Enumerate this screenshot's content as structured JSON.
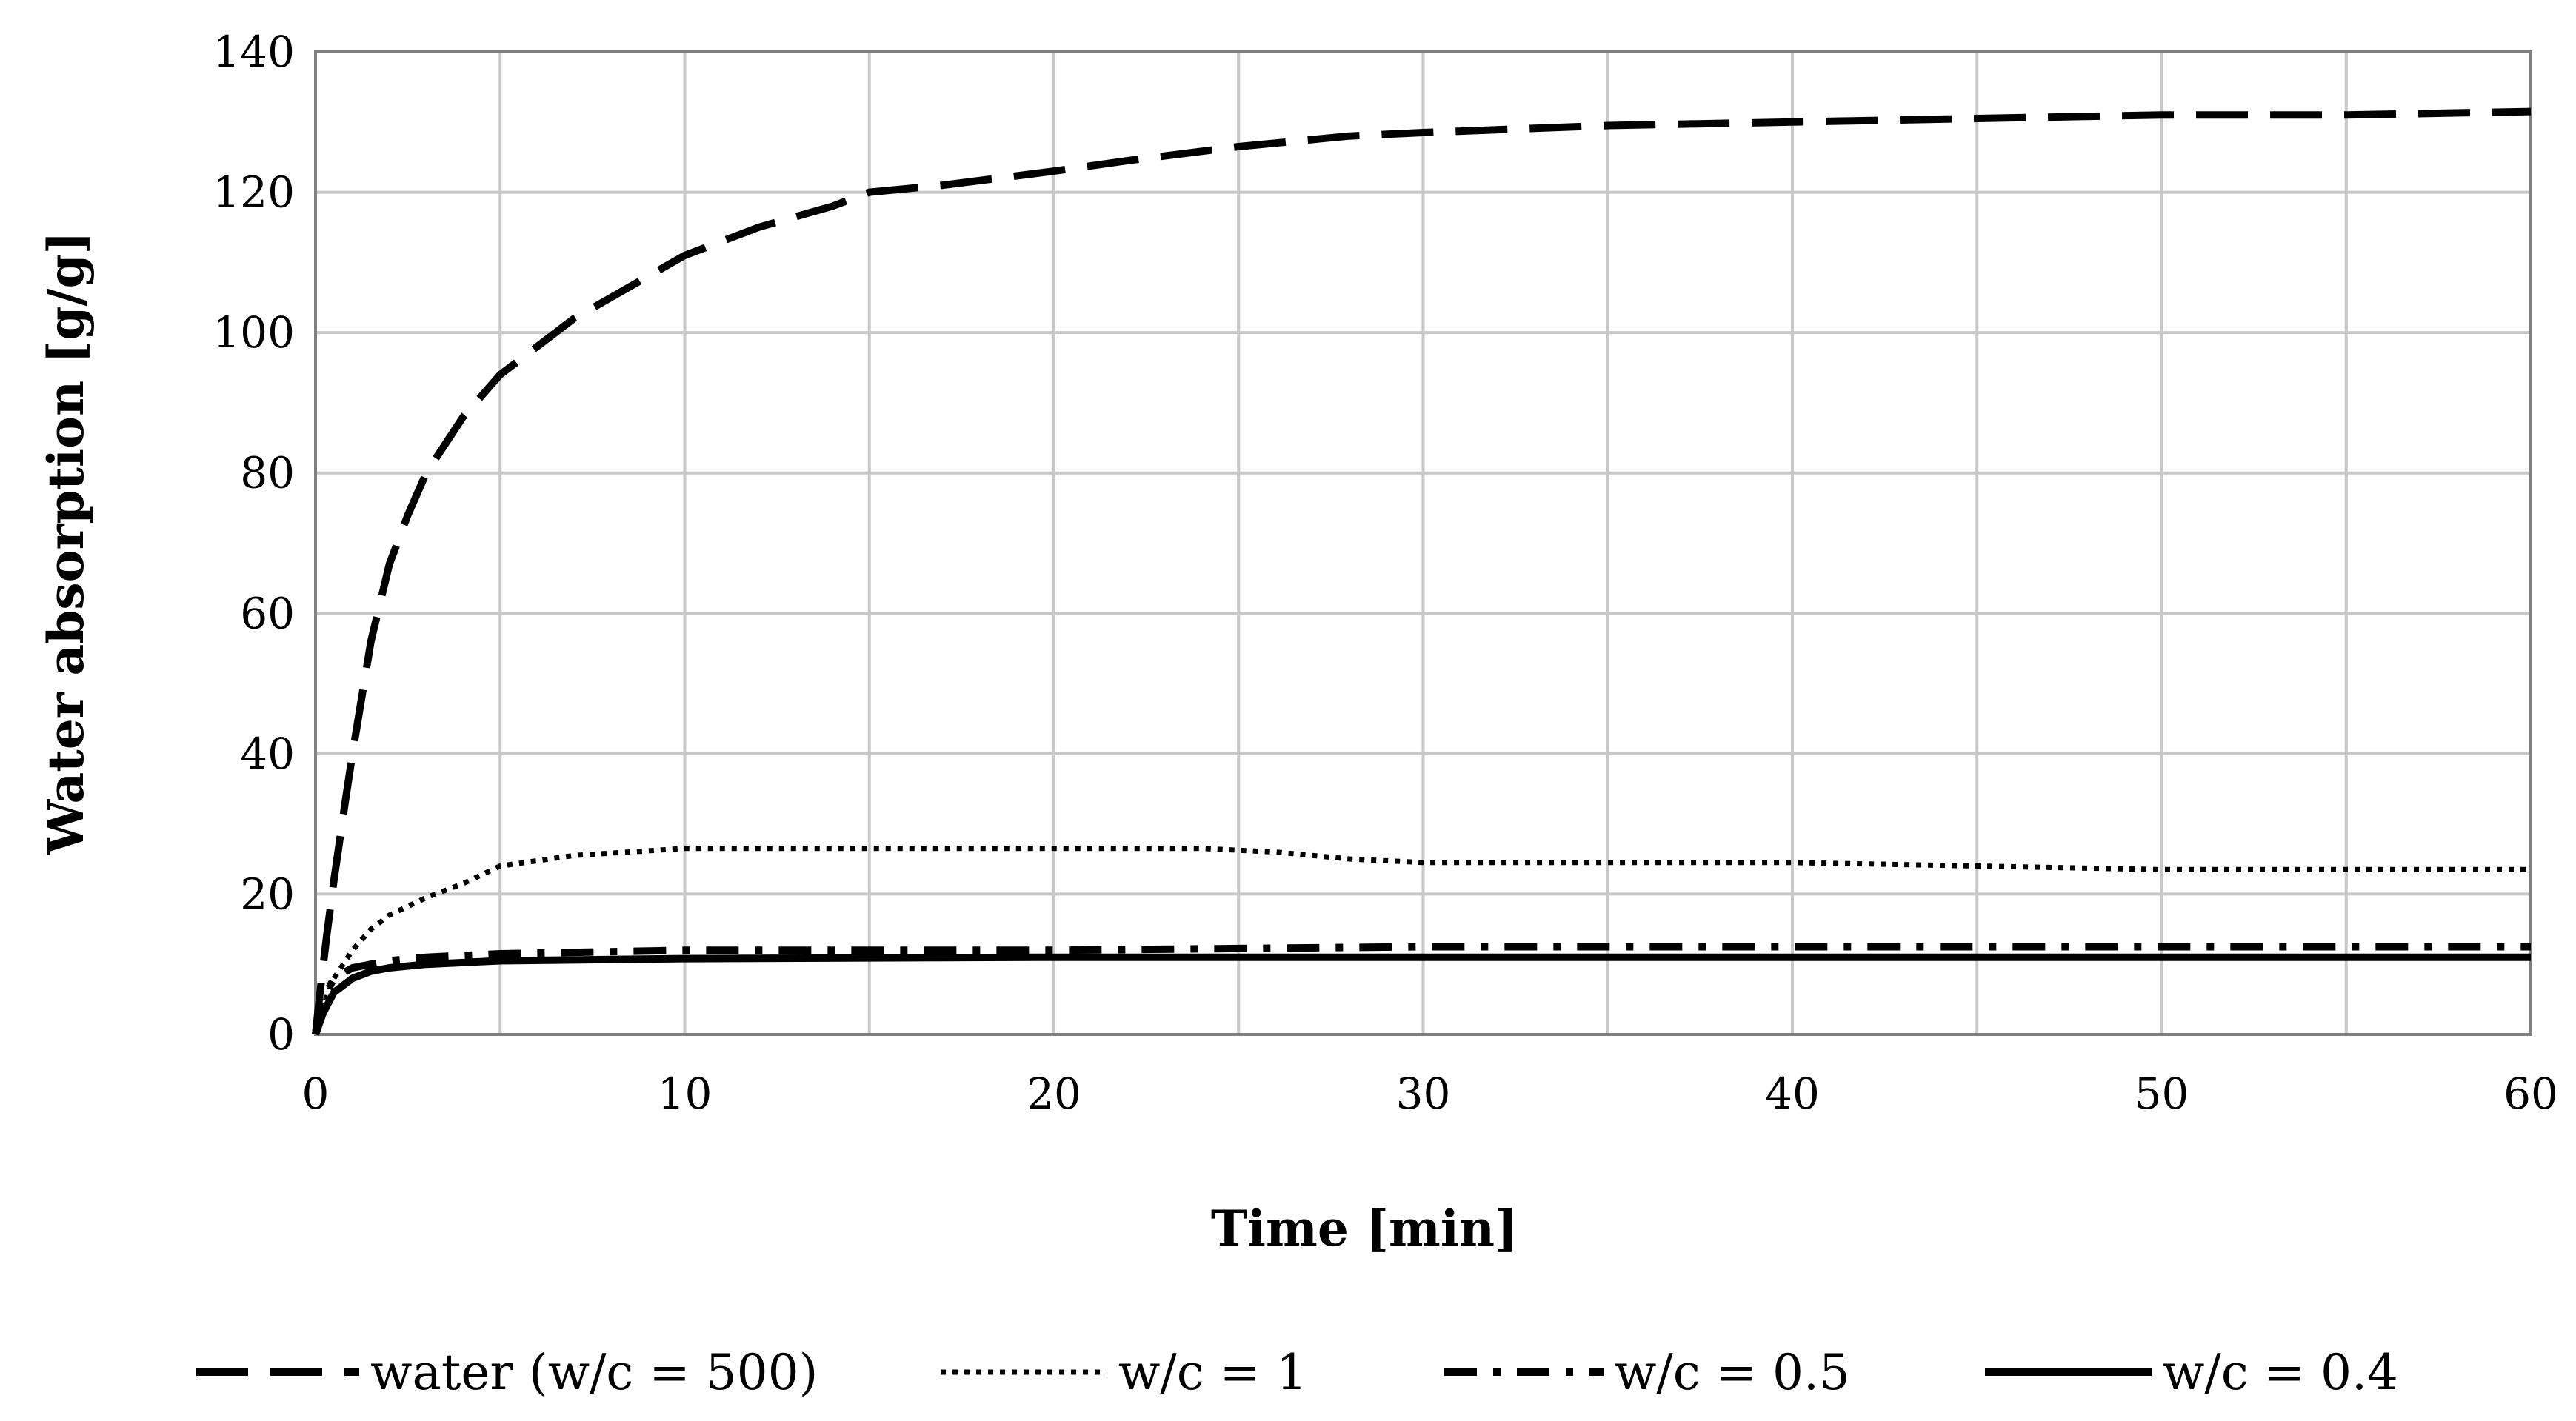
{
  "chart_data": {
    "type": "line",
    "xlabel": "Time [min]",
    "ylabel": "Water absorption [g/g]",
    "xlim": [
      0,
      60
    ],
    "ylim": [
      0,
      140
    ],
    "xticks": [
      0,
      10,
      20,
      30,
      40,
      50,
      60
    ],
    "yticks": [
      0,
      20,
      40,
      60,
      80,
      100,
      120,
      140
    ],
    "x_grid_step": 5,
    "y_grid_step": 20,
    "grid": true,
    "legend_position": "bottom",
    "series": [
      {
        "name": "water (w/c = 500)",
        "style": "long-dash",
        "x": [
          0,
          0.1,
          0.3,
          0.5,
          0.8,
          1,
          1.5,
          2,
          2.5,
          3,
          4,
          5,
          6,
          7,
          8,
          10,
          12,
          14,
          15,
          17,
          20,
          22,
          25,
          28,
          30,
          35,
          40,
          45,
          50,
          55,
          60
        ],
        "y": [
          0,
          5,
          14,
          22,
          33,
          40,
          56,
          67,
          74,
          80,
          88,
          94,
          98,
          102,
          105,
          111,
          115,
          118,
          120,
          121,
          123,
          124.5,
          126.5,
          128,
          128.5,
          129.5,
          130,
          130.5,
          131,
          131,
          131.5
        ]
      },
      {
        "name": "w/c = 1",
        "style": "dotted",
        "x": [
          0,
          0.2,
          0.5,
          1,
          1.5,
          2,
          3,
          4,
          5,
          7,
          10,
          15,
          20,
          24,
          26,
          28,
          30,
          35,
          40,
          45,
          50,
          55,
          60
        ],
        "y": [
          0,
          4,
          8,
          12,
          15,
          17,
          19.5,
          21.5,
          24,
          25.5,
          26.5,
          26.5,
          26.5,
          26.5,
          26,
          25,
          24.5,
          24.5,
          24.5,
          24,
          23.5,
          23.5,
          23.5
        ]
      },
      {
        "name": "w/c = 0.5",
        "style": "dash-dot",
        "x": [
          0,
          0.2,
          0.5,
          1,
          1.5,
          2,
          3,
          5,
          10,
          20,
          30,
          40,
          50,
          60
        ],
        "y": [
          0,
          5,
          8,
          9.5,
          10,
          10.5,
          11,
          11.5,
          12,
          12,
          12.5,
          12.5,
          12.5,
          12.5
        ]
      },
      {
        "name": "w/c = 0.4",
        "style": "solid",
        "x": [
          0,
          0.2,
          0.5,
          1,
          1.5,
          2,
          3,
          5,
          10,
          20,
          30,
          40,
          50,
          60
        ],
        "y": [
          0,
          3,
          6,
          8,
          9,
          9.5,
          10,
          10.5,
          10.8,
          11,
          11,
          11,
          11,
          11
        ]
      }
    ]
  }
}
